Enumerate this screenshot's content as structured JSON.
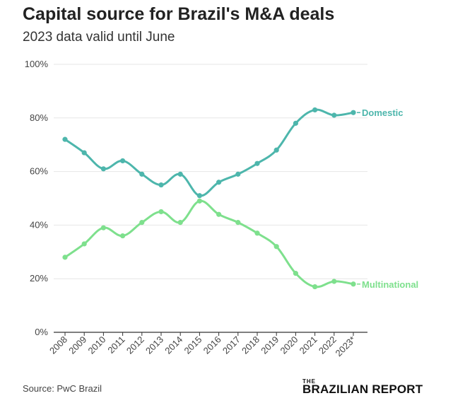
{
  "chart_data": {
    "type": "line",
    "title": "Capital source for Brazil's M&A deals",
    "subtitle": "2023 data valid until June",
    "categories": [
      "2008",
      "2009",
      "2010",
      "2011",
      "2012",
      "2013",
      "2014",
      "2015",
      "2016",
      "2017",
      "2018",
      "2019",
      "2020",
      "2021",
      "2022",
      "2023*"
    ],
    "series": [
      {
        "name": "Domestic",
        "color": "#4db6ac",
        "values": [
          72,
          67,
          61,
          64,
          59,
          55,
          59,
          51,
          56,
          59,
          63,
          68,
          78,
          83,
          81,
          82
        ]
      },
      {
        "name": "Multinational",
        "color": "#7ee08d",
        "values": [
          28,
          33,
          39,
          36,
          41,
          45,
          41,
          49,
          44,
          41,
          37,
          32,
          22,
          17,
          19,
          18
        ]
      }
    ],
    "yticks": [
      "0%",
      "20%",
      "40%",
      "60%",
      "80%",
      "100%"
    ],
    "ylim": [
      0,
      100
    ],
    "grid": true,
    "source": "Source: PwC Brazil"
  },
  "logo": {
    "prefix": "THE",
    "name": "BRAZILIAN REPORT"
  }
}
